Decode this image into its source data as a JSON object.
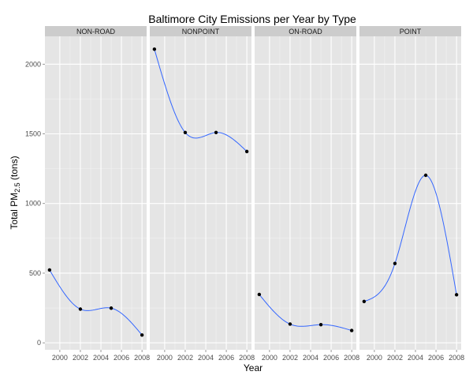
{
  "colors": {
    "panel_bg": "#e5e5e5",
    "grid_major": "#ffffff",
    "grid_minor": "#f2f2f2",
    "strip_bg": "#cccccc",
    "line": "#3366ff",
    "point": "#000000",
    "tick": "#7f7f7f"
  },
  "chart_data": {
    "type": "line",
    "title": "Baltimore City Emissions per Year by Type",
    "xlabel": "Year",
    "ylabel": {
      "prefix": "Total PM",
      "subscript": "2.5",
      "suffix": " (tons)"
    },
    "x": [
      1999,
      2002,
      2005,
      2008
    ],
    "x_ticks": [
      2000,
      2002,
      2004,
      2006,
      2008
    ],
    "x_tick_labels": [
      "2000",
      "2002",
      "2004",
      "2006",
      "2008"
    ],
    "xlim": [
      1998.55,
      2008.45
    ],
    "y_ticks": [
      0,
      500,
      1000,
      1500,
      2000
    ],
    "y_tick_labels": [
      "0",
      "500",
      "1000",
      "1500",
      "2000"
    ],
    "ylim": [
      -50,
      2200
    ],
    "smooth": true,
    "panels": [
      {
        "label": "NON-ROAD",
        "values": [
          522.9,
          241.9,
          248.9,
          55.8
        ]
      },
      {
        "label": "NONPOINT",
        "values": [
          2107.6,
          1509.5,
          1509.5,
          1373.2
        ]
      },
      {
        "label": "ON-ROAD",
        "values": [
          346.8,
          134.3,
          130.4,
          88.3
        ]
      },
      {
        "label": "POINT",
        "values": [
          296.8,
          569.3,
          1202.5,
          344.98
        ]
      }
    ]
  }
}
